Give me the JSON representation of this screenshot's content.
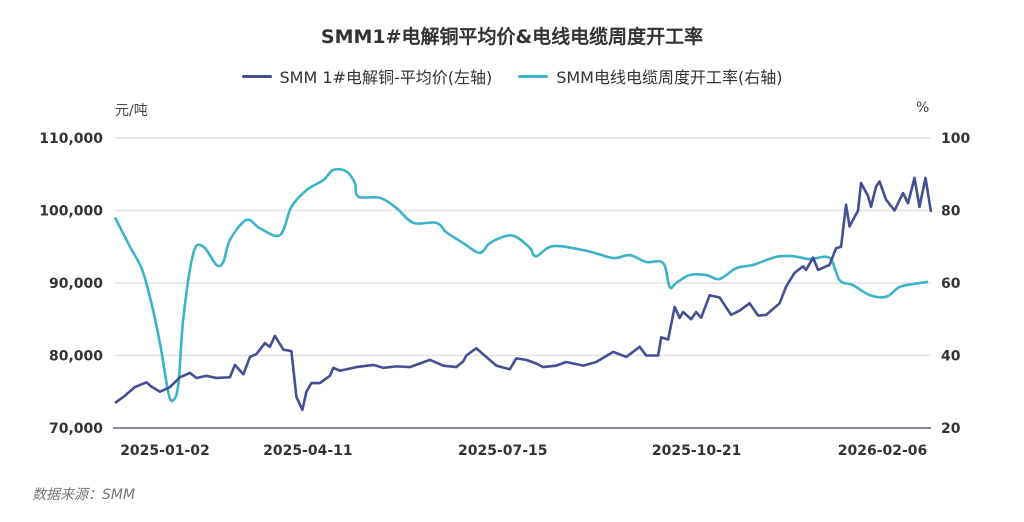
{
  "chart_data": {
    "type": "line",
    "title": "SMM1#电解铜平均价&电线电缆周度开工率",
    "left_unit": "元/吨",
    "right_unit": "%",
    "source": "数据来源：SMM",
    "legend_position": "top-center",
    "grid": true,
    "x_range": [
      0,
      163.3
    ],
    "x_ticks": [
      {
        "x": 10,
        "label": "2025-01-02"
      },
      {
        "x": 38.6,
        "label": "2025-04-11"
      },
      {
        "x": 77.6,
        "label": "2025-07-15"
      },
      {
        "x": 116.4,
        "label": "2025-10-21"
      },
      {
        "x": 153.6,
        "label": "2026-02-06"
      }
    ],
    "y_left": {
      "range": [
        70000,
        110000
      ],
      "ticks": [
        "70,000",
        "80,000",
        "90,000",
        "100,000",
        "110,000"
      ],
      "tick_values": [
        70000,
        80000,
        90000,
        100000,
        110000
      ]
    },
    "y_right": {
      "range": [
        20,
        100
      ],
      "ticks": [
        "20",
        "40",
        "60",
        "80",
        "100"
      ],
      "tick_values": [
        20,
        40,
        60,
        80,
        100
      ]
    },
    "series": [
      {
        "name": "SMM 1#电解铜-平均价(左轴)",
        "axis": "left",
        "color": "#454f93",
        "points": [
          [
            0,
            73450
          ],
          [
            1.7,
            74300
          ],
          [
            4,
            75650
          ],
          [
            6.3,
            76300
          ],
          [
            7.3,
            75700
          ],
          [
            9,
            75000
          ],
          [
            11,
            75650
          ],
          [
            13,
            77000
          ],
          [
            15,
            77600
          ],
          [
            16.3,
            76900
          ],
          [
            18.3,
            77200
          ],
          [
            20.3,
            76900
          ],
          [
            23,
            77000
          ],
          [
            24,
            78700
          ],
          [
            25.7,
            77400
          ],
          [
            27,
            79800
          ],
          [
            28.3,
            80200
          ],
          [
            30,
            81700
          ],
          [
            31,
            81200
          ],
          [
            32,
            82700
          ],
          [
            33.7,
            80800
          ],
          [
            35.3,
            80600
          ],
          [
            36.3,
            74300
          ],
          [
            37.5,
            72500
          ],
          [
            38.3,
            75000
          ],
          [
            39.3,
            76200
          ],
          [
            41,
            76200
          ],
          [
            43,
            77200
          ],
          [
            43.7,
            78300
          ],
          [
            45,
            77900
          ],
          [
            48.3,
            78400
          ],
          [
            51.7,
            78700
          ],
          [
            53.7,
            78300
          ],
          [
            56.3,
            78500
          ],
          [
            59,
            78400
          ],
          [
            63,
            79400
          ],
          [
            65.7,
            78600
          ],
          [
            68.3,
            78400
          ],
          [
            69.7,
            79200
          ],
          [
            70.3,
            80000
          ],
          [
            72.3,
            81000
          ],
          [
            74.3,
            79800
          ],
          [
            76.3,
            78600
          ],
          [
            79,
            78100
          ],
          [
            80.3,
            79600
          ],
          [
            82.3,
            79400
          ],
          [
            84.3,
            78900
          ],
          [
            85.7,
            78400
          ],
          [
            88.3,
            78600
          ],
          [
            90.3,
            79100
          ],
          [
            93.7,
            78600
          ],
          [
            96.3,
            79100
          ],
          [
            99.7,
            80500
          ],
          [
            102.3,
            79800
          ],
          [
            105,
            81200
          ],
          [
            106.3,
            80000
          ],
          [
            108.7,
            80000
          ],
          [
            109.3,
            82500
          ],
          [
            110.7,
            82200
          ],
          [
            112,
            86700
          ],
          [
            113,
            85200
          ],
          [
            113.7,
            86000
          ],
          [
            115.3,
            85000
          ],
          [
            116.3,
            86000
          ],
          [
            117.3,
            85200
          ],
          [
            119,
            88300
          ],
          [
            121,
            88000
          ],
          [
            123.3,
            85600
          ],
          [
            125,
            86200
          ],
          [
            127,
            87200
          ],
          [
            128.7,
            85500
          ],
          [
            130.3,
            85600
          ],
          [
            133,
            87200
          ],
          [
            134.3,
            89500
          ],
          [
            136,
            91400
          ],
          [
            137.7,
            92300
          ],
          [
            138.3,
            91800
          ],
          [
            139.7,
            93500
          ],
          [
            140.7,
            91800
          ],
          [
            143,
            92500
          ],
          [
            144.3,
            94800
          ],
          [
            145.3,
            95000
          ],
          [
            146.3,
            100800
          ],
          [
            147,
            97800
          ],
          [
            148.7,
            100000
          ],
          [
            149.3,
            103800
          ],
          [
            150.7,
            102000
          ],
          [
            151.3,
            100500
          ],
          [
            152.3,
            103300
          ],
          [
            153,
            104000
          ],
          [
            154.3,
            101500
          ],
          [
            156,
            100000
          ],
          [
            157.7,
            102400
          ],
          [
            158.7,
            101000
          ],
          [
            160,
            104500
          ],
          [
            161,
            100500
          ],
          [
            162.2,
            104500
          ],
          [
            163.3,
            99800
          ]
        ]
      },
      {
        "name": "SMM电线电缆周度开工率(右轴)",
        "axis": "right",
        "color": "#3cb3c7",
        "points": [
          [
            0,
            78.1
          ],
          [
            3,
            70.0
          ],
          [
            5.3,
            64.1
          ],
          [
            7,
            56.1
          ],
          [
            9,
            43.4
          ],
          [
            10.7,
            29.6
          ],
          [
            11.7,
            27.7
          ],
          [
            12.7,
            32.4
          ],
          [
            13.7,
            50.6
          ],
          [
            15.7,
            68.3
          ],
          [
            17.7,
            70.0
          ],
          [
            20.3,
            65.0
          ],
          [
            21.7,
            65.9
          ],
          [
            23,
            71.9
          ],
          [
            26.3,
            77.4
          ],
          [
            29,
            75.1
          ],
          [
            33,
            73.2
          ],
          [
            35.3,
            81.0
          ],
          [
            38.3,
            85.6
          ],
          [
            41.7,
            88.4
          ],
          [
            43.7,
            91.2
          ],
          [
            46.3,
            90.8
          ],
          [
            48,
            87.6
          ],
          [
            48.7,
            83.8
          ],
          [
            53,
            83.5
          ],
          [
            56.3,
            80.7
          ],
          [
            59.7,
            76.6
          ],
          [
            64.3,
            76.6
          ],
          [
            66.3,
            74.0
          ],
          [
            69.7,
            71.0
          ],
          [
            73,
            68.3
          ],
          [
            75,
            71.0
          ],
          [
            78.3,
            73.0
          ],
          [
            80.3,
            72.7
          ],
          [
            83,
            69.7
          ],
          [
            84.3,
            67.4
          ],
          [
            87.7,
            70.2
          ],
          [
            94.3,
            68.9
          ],
          [
            99.7,
            66.9
          ],
          [
            103,
            67.7
          ],
          [
            106.3,
            65.8
          ],
          [
            109.7,
            65.5
          ],
          [
            111,
            58.9
          ],
          [
            112.3,
            60.0
          ],
          [
            115,
            62.2
          ],
          [
            118.3,
            62.2
          ],
          [
            121,
            61.1
          ],
          [
            124.3,
            64.1
          ],
          [
            127.7,
            65.0
          ],
          [
            132.3,
            67.2
          ],
          [
            135.7,
            67.4
          ],
          [
            139,
            66.6
          ],
          [
            143,
            66.9
          ],
          [
            145,
            60.8
          ],
          [
            147.7,
            59.4
          ],
          [
            151,
            56.7
          ],
          [
            154.3,
            56.2
          ],
          [
            157,
            58.9
          ],
          [
            159.7,
            59.7
          ],
          [
            162.7,
            60.3
          ]
        ]
      }
    ]
  }
}
